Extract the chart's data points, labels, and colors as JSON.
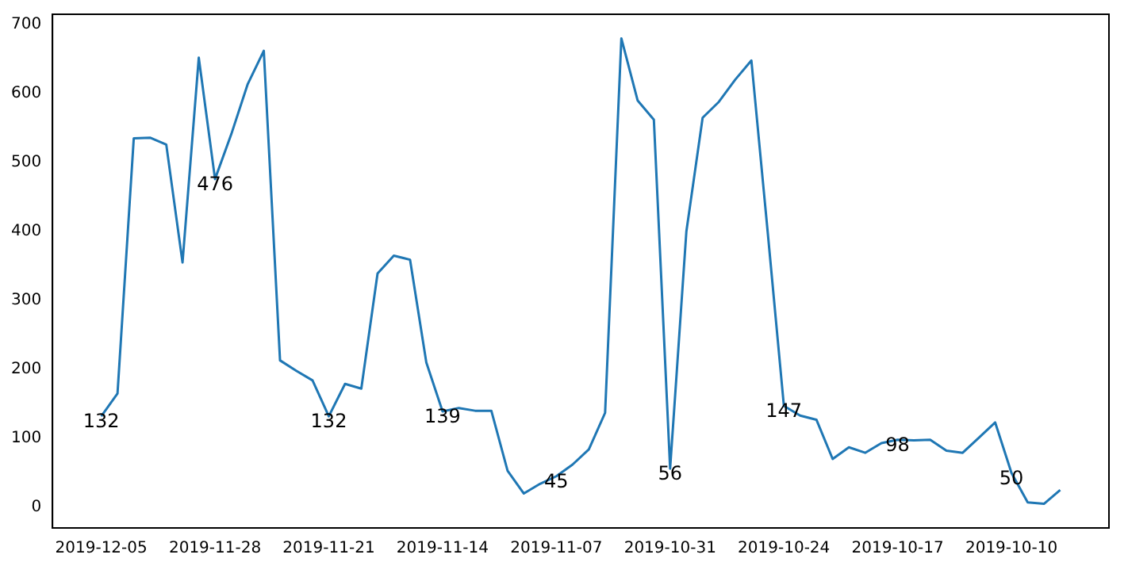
{
  "chart_data": {
    "type": "line",
    "x": [
      "2019-12-05",
      "2019-12-04",
      "2019-12-03",
      "2019-12-02",
      "2019-12-01",
      "2019-11-30",
      "2019-11-29",
      "2019-11-28",
      "2019-11-27",
      "2019-11-26",
      "2019-11-25",
      "2019-11-24",
      "2019-11-23",
      "2019-11-22",
      "2019-11-21",
      "2019-11-20",
      "2019-11-19",
      "2019-11-18",
      "2019-11-17",
      "2019-11-16",
      "2019-11-15",
      "2019-11-14",
      "2019-11-13",
      "2019-11-12",
      "2019-11-11",
      "2019-11-10",
      "2019-11-09",
      "2019-11-08",
      "2019-11-07",
      "2019-11-06",
      "2019-11-05",
      "2019-11-04",
      "2019-11-03",
      "2019-11-02",
      "2019-11-01",
      "2019-10-31",
      "2019-10-30",
      "2019-10-29",
      "2019-10-28",
      "2019-10-27",
      "2019-10-26",
      "2019-10-25",
      "2019-10-24",
      "2019-10-23",
      "2019-10-22",
      "2019-10-21",
      "2019-10-20",
      "2019-10-19",
      "2019-10-18",
      "2019-10-17",
      "2019-10-16",
      "2019-10-15",
      "2019-10-14",
      "2019-10-13",
      "2019-10-12",
      "2019-10-11",
      "2019-10-10",
      "2019-10-09",
      "2019-10-08",
      "2019-10-07"
    ],
    "series": [
      {
        "color": "#1f77b4",
        "values": [
          132,
          165,
          535,
          536,
          526,
          355,
          652,
          476,
          541,
          613,
          662,
          213,
          198,
          184,
          132,
          179,
          172,
          339,
          365,
          359,
          210,
          139,
          144,
          140,
          140,
          53,
          20,
          34,
          45,
          62,
          84,
          137,
          680,
          590,
          562,
          56,
          400,
          565,
          588,
          620,
          648,
          400,
          147,
          133,
          127,
          70,
          87,
          79,
          93,
          98,
          97,
          98,
          82,
          79,
          101,
          123,
          50,
          7,
          5,
          25
        ],
        "value_labels": [
          "132",
          null,
          null,
          null,
          null,
          null,
          null,
          "476",
          null,
          null,
          null,
          null,
          null,
          null,
          "132",
          null,
          null,
          null,
          null,
          null,
          null,
          "139",
          null,
          null,
          null,
          null,
          null,
          null,
          "45",
          null,
          null,
          null,
          null,
          null,
          null,
          "56",
          null,
          null,
          null,
          null,
          null,
          null,
          "147",
          null,
          null,
          null,
          null,
          null,
          null,
          "98",
          null,
          null,
          null,
          null,
          null,
          null,
          "50",
          null,
          null,
          null
        ]
      }
    ],
    "xlim": [
      "2019-12-08",
      "2019-10-04"
    ],
    "xticks": [
      "2019-12-05",
      "2019-11-28",
      "2019-11-21",
      "2019-11-14",
      "2019-11-07",
      "2019-10-31",
      "2019-10-24",
      "2019-10-17",
      "2019-10-10"
    ],
    "ylim": [
      -30,
      715
    ],
    "yticks": [
      0,
      100,
      200,
      300,
      400,
      500,
      600,
      700
    ],
    "grid": false,
    "legend": false,
    "marker": "none",
    "line_style": "solid"
  }
}
